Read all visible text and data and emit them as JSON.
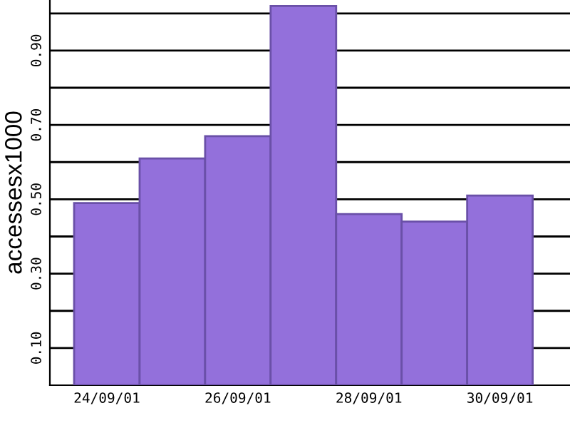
{
  "chart_data": {
    "type": "bar",
    "ylabel": "accessesx1000",
    "categories": [
      "24/09/01",
      null,
      "26/09/01",
      null,
      "28/09/01",
      null,
      "30/09/01"
    ],
    "values": [
      0.49,
      0.61,
      0.67,
      1.02,
      0.46,
      0.44,
      0.51
    ],
    "color": "#9370db",
    "ylim": [
      0,
      1.036
    ],
    "yticks": [
      {
        "value": 0.1,
        "label": "0.10"
      },
      {
        "value": 0.2,
        "label": null
      },
      {
        "value": 0.3,
        "label": "0.30"
      },
      {
        "value": 0.4,
        "label": null
      },
      {
        "value": 0.5,
        "label": "0.50"
      },
      {
        "value": 0.6,
        "label": null
      },
      {
        "value": 0.7,
        "label": "0.70"
      },
      {
        "value": 0.8,
        "label": null
      },
      {
        "value": 0.9,
        "label": "0.90"
      },
      {
        "value": 1.0,
        "label": null
      }
    ],
    "grid": "y"
  }
}
